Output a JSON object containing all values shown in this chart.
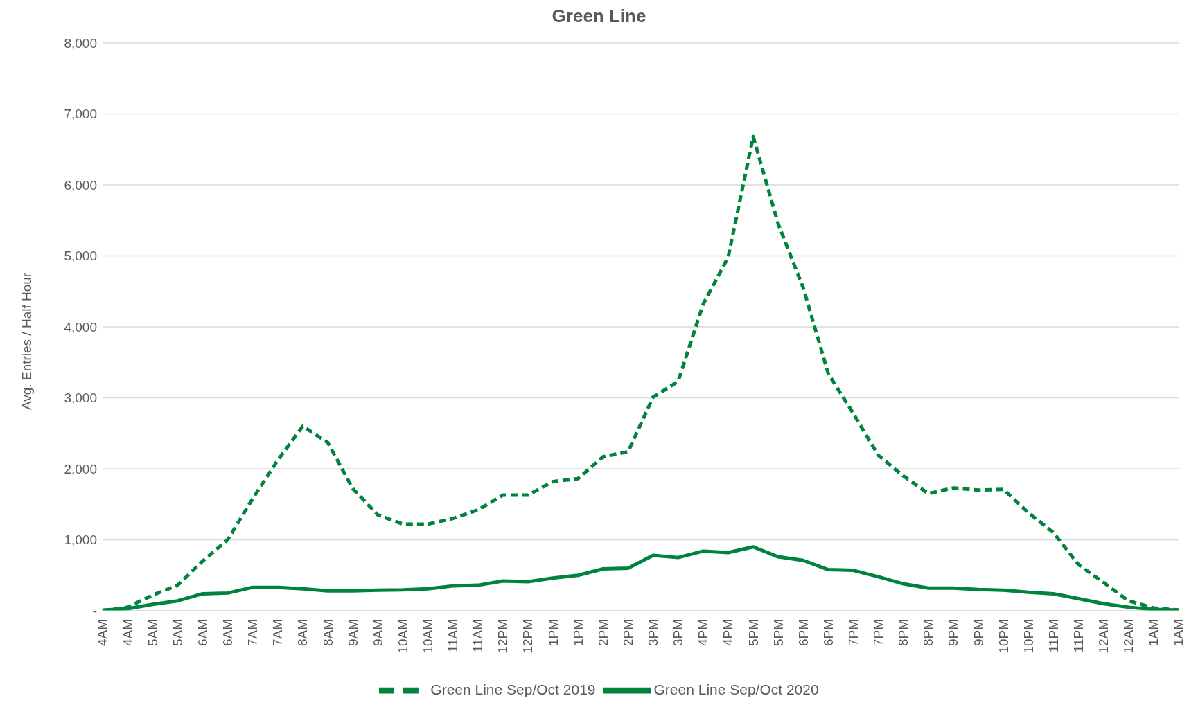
{
  "chart_data": {
    "type": "line",
    "title": "Green Line",
    "ylabel": "Avg. Entries / Half Hour",
    "categories": [
      "4AM",
      "4AM",
      "5AM",
      "5AM",
      "6AM",
      "6AM",
      "7AM",
      "7AM",
      "8AM",
      "8AM",
      "9AM",
      "9AM",
      "10AM",
      "10AM",
      "11AM",
      "11AM",
      "12PM",
      "12PM",
      "1PM",
      "1PM",
      "2PM",
      "2PM",
      "3PM",
      "3PM",
      "4PM",
      "4PM",
      "5PM",
      "5PM",
      "6PM",
      "6PM",
      "7PM",
      "7PM",
      "8PM",
      "8PM",
      "9PM",
      "9PM",
      "10PM",
      "10PM",
      "11PM",
      "11PM",
      "12AM",
      "12AM",
      "1AM",
      "1AM"
    ],
    "series": [
      {
        "name": "Green Line Sep/Oct 2019",
        "color": "#00843d",
        "line_style": "dashed",
        "values": [
          0,
          50,
          220,
          360,
          700,
          1000,
          1580,
          2120,
          2600,
          2370,
          1720,
          1350,
          1220,
          1220,
          1300,
          1420,
          1630,
          1630,
          1820,
          1860,
          2170,
          2240,
          3010,
          3230,
          4320,
          4980,
          6680,
          5450,
          4550,
          3340,
          2780,
          2190,
          1900,
          1650,
          1730,
          1700,
          1710,
          1380,
          1100,
          650,
          400,
          140,
          40,
          10
        ]
      },
      {
        "name": "Green Line Sep/Oct 2020",
        "color": "#00843d",
        "line_style": "solid",
        "values": [
          10,
          30,
          90,
          140,
          240,
          250,
          330,
          330,
          310,
          280,
          280,
          290,
          295,
          310,
          350,
          360,
          420,
          410,
          460,
          500,
          590,
          600,
          780,
          750,
          840,
          820,
          900,
          760,
          710,
          580,
          570,
          480,
          380,
          320,
          320,
          300,
          290,
          260,
          240,
          170,
          100,
          50,
          20,
          10
        ]
      }
    ],
    "ylim": [
      0,
      8000
    ],
    "yticks": [
      {
        "value": 0,
        "label": "-"
      },
      {
        "value": 1000,
        "label": "1,000"
      },
      {
        "value": 2000,
        "label": "2,000"
      },
      {
        "value": 3000,
        "label": "3,000"
      },
      {
        "value": 4000,
        "label": "4,000"
      },
      {
        "value": 5000,
        "label": "5,000"
      },
      {
        "value": 6000,
        "label": "6,000"
      },
      {
        "value": 7000,
        "label": "7,000"
      },
      {
        "value": 8000,
        "label": "8,000"
      }
    ],
    "grid": "y",
    "legend": "bottom",
    "marker": "none"
  }
}
